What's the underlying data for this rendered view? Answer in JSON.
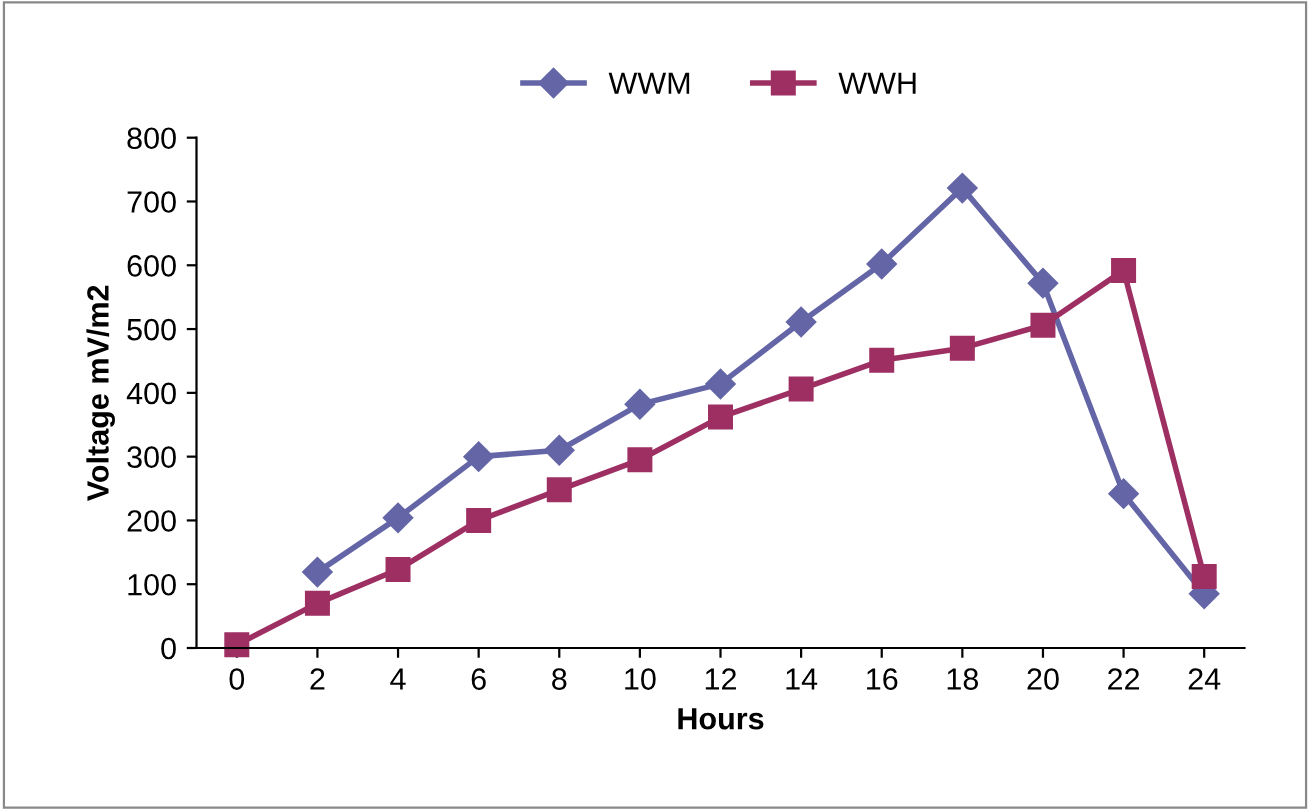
{
  "chart_data": {
    "type": "line",
    "xlabel": "Hours",
    "ylabel": "Voltage mV/m2",
    "categories": [
      "0",
      "2",
      "4",
      "6",
      "8",
      "10",
      "12",
      "14",
      "16",
      "18",
      "20",
      "22",
      "24"
    ],
    "series": [
      {
        "name": "WWM",
        "color": "#6465a6",
        "marker": "diamond",
        "values": [
          null,
          119,
          204,
          300,
          310,
          382,
          414,
          511,
          602,
          721,
          572,
          242,
          85
        ]
      },
      {
        "name": "WWH",
        "color": "#9e2f62",
        "marker": "square",
        "values": [
          5,
          70,
          123,
          200,
          248,
          295,
          362,
          406,
          451,
          470,
          506,
          592,
          112
        ]
      }
    ],
    "ylim": [
      0,
      800
    ],
    "yticks": [
      0,
      100,
      200,
      300,
      400,
      500,
      600,
      700,
      800
    ],
    "grid": false,
    "legend": "top",
    "line_style": "solid"
  }
}
